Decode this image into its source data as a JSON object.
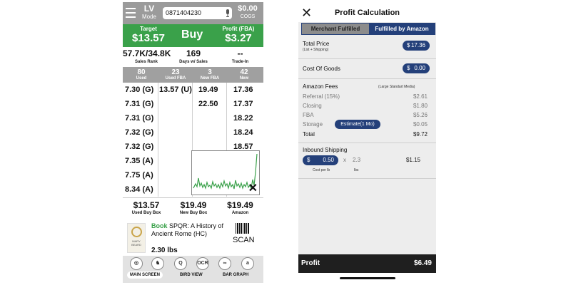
{
  "left": {
    "mode": {
      "line1": "LV",
      "line2": "Mode"
    },
    "search_value": "0871404230",
    "cogs": {
      "value": "$0.00",
      "label": "COGS"
    },
    "target": {
      "label": "Target",
      "value": "$13.57"
    },
    "buy_label": "Buy",
    "profit_fba": {
      "label": "Profit (FBA)",
      "value": "$3.27"
    },
    "stats": [
      {
        "value": "57.7K/34.8K",
        "label": "Sales Rank"
      },
      {
        "value": "169",
        "label": "Days w/ Sales"
      },
      {
        "value": "--",
        "label": "Trade-In"
      }
    ],
    "offer_headers": [
      {
        "count": "80",
        "label": "Used"
      },
      {
        "count": "23",
        "label": "Used FBA"
      },
      {
        "count": "3",
        "label": "New FBA"
      },
      {
        "count": "42",
        "label": "New"
      }
    ],
    "columns": {
      "used": [
        "7.30 (G)",
        "7.31 (G)",
        "7.31 (G)",
        "7.32 (G)",
        "7.32 (G)",
        "7.35 (A)",
        "7.75 (A)",
        "8.34 (A)"
      ],
      "used_fba": [
        "13.57 (U)"
      ],
      "new_fba": [
        "19.49",
        "22.50"
      ],
      "new": [
        "17.36",
        "17.37",
        "18.22",
        "18.24",
        "18.57"
      ]
    },
    "bottom_prices": [
      {
        "price": "$13.57",
        "label": "Used Buy Box"
      },
      {
        "price": "$19.49",
        "label": "New Buy Box"
      },
      {
        "price": "$19.49",
        "label": "Amazon"
      }
    ],
    "product": {
      "category": "Book",
      "title": "SPQR: A History of Ancient Rome (HC)",
      "weight": "2.30 lbs",
      "scan_label": "SCAN",
      "cover_text": "MARY BEARD"
    },
    "toolbar": {
      "icons": [
        {
          "name": "main-screen-icon",
          "glyph": "◎"
        },
        {
          "name": "camel-icon",
          "glyph": "♞"
        },
        {
          "name": "magnify-icon",
          "glyph": "Q"
        },
        {
          "name": "ocr-icon",
          "glyph": "OCR"
        },
        {
          "name": "link-icon",
          "glyph": "∞"
        },
        {
          "name": "amazon-icon",
          "glyph": "a"
        }
      ],
      "labels": [
        "MAIN SCREEN",
        "BIRD VIEW",
        "BAR GRAPH"
      ]
    }
  },
  "right": {
    "title": "Profit Calculation",
    "tabs": [
      "Merchant Fulfilled",
      "Fulfilled by Amazon"
    ],
    "total_price": {
      "label": "Total Price",
      "sub": "(List + Shipping)",
      "currency": "$",
      "value": "17.36"
    },
    "cost_of_goods": {
      "label": "Cost Of Goods",
      "currency": "$",
      "value": "0.00"
    },
    "amazon_fees": {
      "label": "Amazon Fees",
      "size_tier": "(Large Standart Media)",
      "items": [
        {
          "label": "Referral (15%)",
          "value": "$2.61"
        },
        {
          "label": "Closing",
          "value": "$1.80"
        },
        {
          "label": "FBA",
          "value": "$5.26"
        },
        {
          "label": "Storage",
          "value": "$0.05"
        }
      ],
      "estimate_button": "Estimate(1 Mo)",
      "total_label": "Total",
      "total_value": "$9.72"
    },
    "inbound": {
      "label": "Inbound Shipping",
      "currency": "$",
      "cost_per_lb": "0.50",
      "times": "x",
      "weight": "2.3",
      "cost_label": "Cost per lb",
      "weight_label": "lbs",
      "value": "$1.15"
    },
    "profit": {
      "label": "Profit",
      "value": "$6.49"
    }
  },
  "colors": {
    "green": "#3aa14a",
    "navy": "#24407a",
    "gray": "#9b9b9b"
  }
}
